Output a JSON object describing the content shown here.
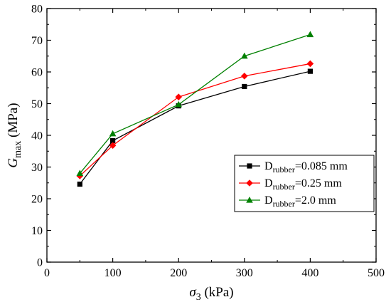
{
  "chart_data": {
    "type": "line",
    "xlabel": {
      "symbol": "σ",
      "sub": "3",
      "unit": " (kPa)"
    },
    "ylabel": {
      "symbol": "G",
      "sub": "max",
      "unit": " (MPa)"
    },
    "xlim": [
      0,
      500
    ],
    "ylim": [
      0,
      80
    ],
    "xticks": [
      0,
      100,
      200,
      300,
      400,
      500
    ],
    "yticks": [
      0,
      10,
      20,
      30,
      40,
      50,
      60,
      70,
      80
    ],
    "grid": false,
    "legend_position": "center-right",
    "series": [
      {
        "name_main": "D",
        "name_sub": "rubber",
        "name_rest": "=0.085 mm",
        "color": "#000000",
        "marker": "square",
        "x": [
          50,
          100,
          200,
          300,
          400
        ],
        "y": [
          24.6,
          38.3,
          49.3,
          55.4,
          60.2
        ]
      },
      {
        "name_main": "D",
        "name_sub": "rubber",
        "name_rest": "=0.25 mm",
        "color": "#ff0000",
        "marker": "diamond",
        "x": [
          50,
          100,
          200,
          300,
          400
        ],
        "y": [
          27.2,
          36.8,
          52.1,
          58.7,
          62.6
        ]
      },
      {
        "name_main": "D",
        "name_sub": "rubber",
        "name_rest": "=2.0 mm",
        "color": "#008000",
        "marker": "triangle",
        "x": [
          50,
          100,
          200,
          300,
          400
        ],
        "y": [
          28.0,
          40.5,
          49.7,
          65.0,
          71.8
        ]
      }
    ]
  }
}
